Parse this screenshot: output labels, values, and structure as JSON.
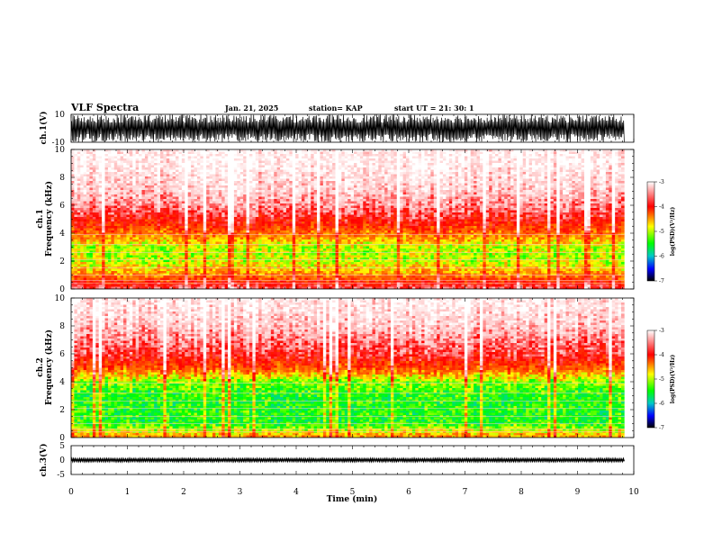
{
  "header": {
    "title": "VLF Spectra",
    "date": "Jan. 21, 2025",
    "station": "station= KAP",
    "start": "start  UT =   21: 30: 1"
  },
  "axes": {
    "xlabel": "Time (min)",
    "ch1_wave_label": "ch.1(V)",
    "ch1_spec_label_top": "ch.1",
    "ch1_spec_label": "Frequency (kHz)",
    "ch2_spec_label_top": "ch.2",
    "ch2_spec_label": "Frequency (kHz)",
    "ch3_wave_label": "ch.3(V)"
  },
  "colorbar": {
    "label": "log(PSD)(V²/Hz)",
    "ticks": [
      "-3",
      "-4",
      "-5",
      "-6",
      "-7"
    ],
    "colors": [
      "#ffffff",
      "#ff0000",
      "#ffff00",
      "#00ff00",
      "#00c8c8",
      "#0000ff",
      "#000000"
    ]
  },
  "chart_data": [
    {
      "type": "line",
      "panel": "ch1-waveform",
      "ylabel": "ch.1(V)",
      "ylim": [
        -10,
        10
      ],
      "yticks": [
        "10",
        "-10"
      ],
      "xlim": [
        0,
        10
      ],
      "description_values": {
        "amplitude_range_V": [
          -10,
          10
        ],
        "mean_V": 0
      }
    },
    {
      "type": "heatmap",
      "panel": "ch1-spectrogram",
      "ylabel": "Frequency (kHz)",
      "ylim": [
        0,
        10
      ],
      "yticks": [
        "0",
        "2",
        "4",
        "6",
        "8",
        "10"
      ],
      "xlim": [
        0,
        10
      ],
      "zlim": [
        -7,
        -3
      ],
      "freq_kHz": [
        0,
        1,
        2,
        3,
        4,
        5,
        6,
        7,
        8,
        9,
        10
      ],
      "log_psd_profile": [
        -3.6,
        -4.3,
        -4.7,
        -4.7,
        -4.2,
        -3.8,
        -3.5,
        -3.3,
        -3.2,
        -3.1,
        -3.1
      ]
    },
    {
      "type": "heatmap",
      "panel": "ch2-spectrogram",
      "ylabel": "Frequency (kHz)",
      "ylim": [
        0,
        10
      ],
      "yticks": [
        "0",
        "2",
        "4",
        "6",
        "8",
        "10"
      ],
      "xlim": [
        0,
        10
      ],
      "zlim": [
        -7,
        -3
      ],
      "freq_kHz": [
        0,
        1,
        2,
        3,
        4,
        5,
        6,
        7,
        8,
        9,
        10
      ],
      "log_psd_profile": [
        -4.3,
        -5.0,
        -5.0,
        -5.0,
        -4.8,
        -4.1,
        -3.7,
        -3.5,
        -3.3,
        -3.2,
        -3.1
      ]
    },
    {
      "type": "line",
      "panel": "ch3-waveform",
      "ylabel": "ch.3(V)",
      "ylim": [
        -5,
        5
      ],
      "yticks": [
        "5",
        "0",
        "-5"
      ],
      "xlim": [
        0,
        10
      ],
      "description_values": {
        "amplitude_range_V": [
          -0.5,
          0.5
        ],
        "mean_V": 0
      }
    }
  ],
  "xaxis": {
    "ticks": [
      "0",
      "1",
      "2",
      "3",
      "4",
      "5",
      "6",
      "7",
      "8",
      "9",
      "10"
    ],
    "data_end_min": 9.83
  }
}
